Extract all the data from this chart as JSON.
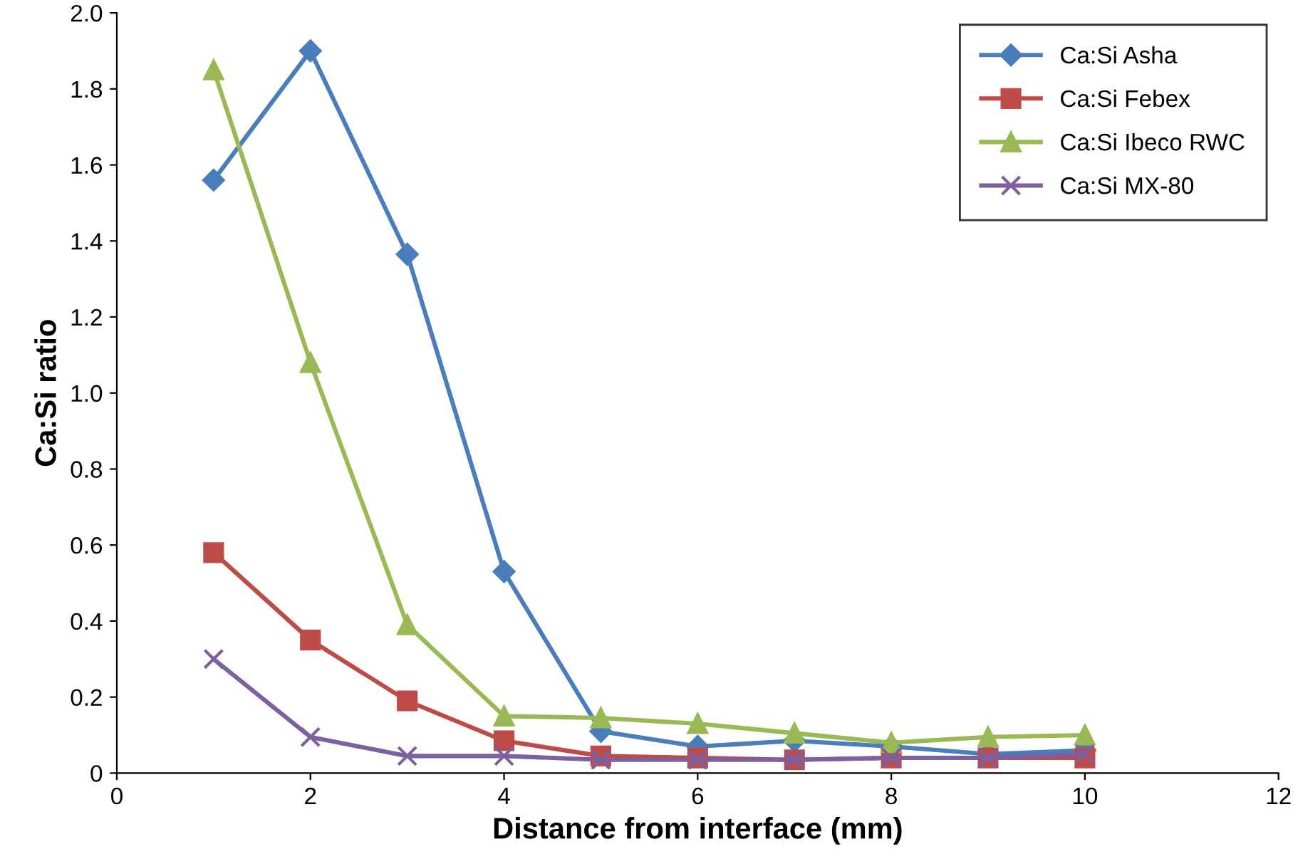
{
  "chart_data": {
    "type": "line",
    "xlabel": "Distance from interface (mm)",
    "ylabel": "Ca:Si ratio",
    "xlim": [
      0,
      12
    ],
    "xticks": [
      0,
      2,
      4,
      6,
      8,
      10,
      12
    ],
    "ylim": [
      0,
      2.0
    ],
    "yticks": [
      {
        "value": 0,
        "label": "0"
      },
      {
        "value": 0.2,
        "label": "0.2"
      },
      {
        "value": 0.4,
        "label": "0.4"
      },
      {
        "value": 0.6,
        "label": "0.6"
      },
      {
        "value": 0.8,
        "label": "0.8"
      },
      {
        "value": 1.0,
        "label": "1.0"
      },
      {
        "value": 1.2,
        "label": "1.2"
      },
      {
        "value": 1.4,
        "label": "1.4"
      },
      {
        "value": 1.6,
        "label": "1.6"
      },
      {
        "value": 1.8,
        "label": "1.8"
      },
      {
        "value": 2.0,
        "label": "2.0"
      }
    ],
    "x": [
      1,
      2,
      3,
      4,
      5,
      6,
      7,
      8,
      9,
      10
    ],
    "grid": false,
    "legend": "top right",
    "line_style": "solid",
    "series": [
      {
        "name": "Ca:Si Asha",
        "color": "#4a7ebb",
        "marker": "diamond",
        "values": [
          1.56,
          1.9,
          1.365,
          0.53,
          0.11,
          0.07,
          0.085,
          0.07,
          0.05,
          0.06
        ]
      },
      {
        "name": "Ca:Si Febex",
        "color": "#be4b48",
        "marker": "square",
        "values": [
          0.58,
          0.35,
          0.19,
          0.085,
          0.045,
          0.04,
          0.035,
          0.04,
          0.04,
          0.04
        ]
      },
      {
        "name": "Ca:Si Ibeco RWC",
        "color": "#98b954",
        "marker": "triangle",
        "values": [
          1.85,
          1.08,
          0.39,
          0.15,
          0.145,
          0.13,
          0.105,
          0.08,
          0.095,
          0.1
        ]
      },
      {
        "name": "Ca:Si MX-80",
        "color": "#7d60a0",
        "marker": "cross",
        "values": [
          0.3,
          0.095,
          0.045,
          0.045,
          0.035,
          0.035,
          0.035,
          0.04,
          0.04,
          0.05
        ]
      }
    ]
  }
}
